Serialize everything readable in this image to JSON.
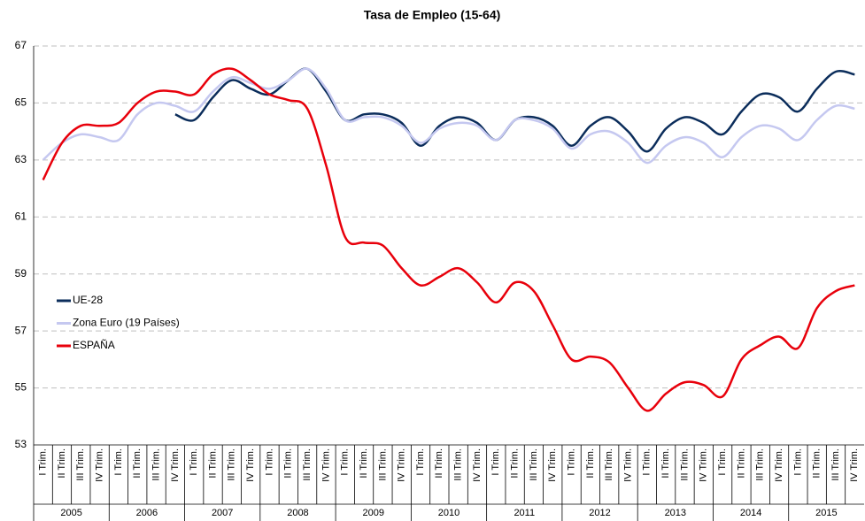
{
  "chart_data": {
    "type": "line",
    "title": "Tasa de Empleo (15-64)",
    "categories": [
      "I Trim.",
      "II Trim.",
      "III Trim.",
      "IV Trim.",
      "I Trim.",
      "II Trim.",
      "III Trim.",
      "IV Trim.",
      "I Trim.",
      "II Trim.",
      "III Trim.",
      "IV Trim.",
      "I Trim.",
      "II Trim.",
      "III Trim.",
      "IV Trim.",
      "I Trim.",
      "II Trim.",
      "III Trim.",
      "IV Trim.",
      "I Trim.",
      "II Trim.",
      "III Trim.",
      "IV Trim.",
      "I Trim.",
      "II Trim.",
      "III Trim.",
      "IV Trim.",
      "I Trim.",
      "II Trim.",
      "III Trim.",
      "IV Trim.",
      "I Trim.",
      "II Trim.",
      "III Trim.",
      "IV Trim.",
      "I Trim.",
      "II Trim.",
      "III Trim.",
      "IV Trim.",
      "I Trim.",
      "II Trim.",
      "III Trim.",
      "IV Trim."
    ],
    "groups": [
      "2005",
      "2006",
      "2007",
      "2008",
      "2009",
      "2010",
      "2011",
      "2012",
      "2013",
      "2014",
      "2015"
    ],
    "series": [
      {
        "name": "UE-28",
        "color": "#0b2d5b",
        "values": [
          null,
          null,
          null,
          null,
          null,
          null,
          null,
          64.6,
          64.4,
          65.2,
          65.8,
          65.5,
          65.3,
          65.8,
          66.2,
          65.4,
          64.4,
          64.6,
          64.6,
          64.3,
          63.5,
          64.2,
          64.5,
          64.3,
          63.7,
          64.4,
          64.5,
          64.2,
          63.5,
          64.2,
          64.5,
          64.0,
          63.3,
          64.1,
          64.5,
          64.3,
          63.9,
          64.7,
          65.3,
          65.2,
          64.7,
          65.5,
          66.1,
          66.0
        ]
      },
      {
        "name": "Zona Euro (19 Países)",
        "color": "#c5c8f0",
        "values": [
          63.0,
          63.6,
          63.9,
          63.8,
          63.7,
          64.6,
          65.0,
          64.9,
          64.7,
          65.4,
          65.9,
          65.7,
          65.5,
          65.8,
          66.2,
          65.5,
          64.4,
          64.5,
          64.5,
          64.2,
          63.6,
          64.1,
          64.3,
          64.2,
          63.7,
          64.4,
          64.4,
          64.1,
          63.4,
          63.9,
          64.0,
          63.6,
          62.9,
          63.5,
          63.8,
          63.6,
          63.1,
          63.8,
          64.2,
          64.1,
          63.7,
          64.4,
          64.9,
          64.8
        ]
      },
      {
        "name": "ESPAÑA",
        "color": "#e8000b",
        "values": [
          62.3,
          63.6,
          64.2,
          64.2,
          64.3,
          65.0,
          65.4,
          65.4,
          65.3,
          66.0,
          66.2,
          65.8,
          65.3,
          65.1,
          64.8,
          62.8,
          60.3,
          60.1,
          60.0,
          59.2,
          58.6,
          58.9,
          59.2,
          58.7,
          58.0,
          58.7,
          58.4,
          57.2,
          56.0,
          56.1,
          55.9,
          55.0,
          54.2,
          54.8,
          55.2,
          55.1,
          54.7,
          56.0,
          56.5,
          56.8,
          56.4,
          57.8,
          58.4,
          58.6
        ]
      }
    ],
    "ylim": [
      53,
      67
    ],
    "yticks": [
      53,
      55,
      57,
      59,
      61,
      63,
      65,
      67
    ],
    "grid": true,
    "legend": "left"
  }
}
